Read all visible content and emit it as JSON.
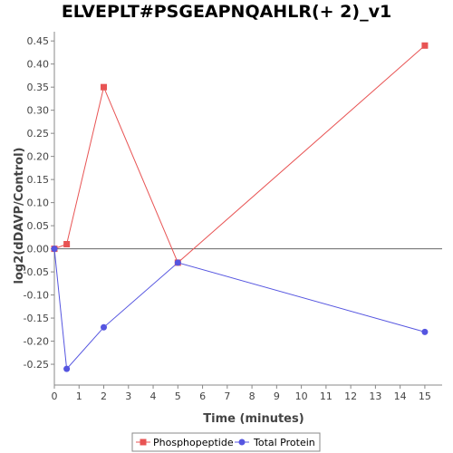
{
  "chart_data": {
    "type": "line",
    "title": "ELVEPLT#PSGEAPNQAHLR(+ 2)_v1",
    "xlabel": "Time (minutes)",
    "ylabel": "log2(dDAVP/Control)",
    "xlim": [
      0,
      15.7
    ],
    "ylim": [
      -0.295,
      0.47
    ],
    "xticks": [
      0,
      1,
      2,
      3,
      4,
      5,
      6,
      7,
      8,
      9,
      10,
      11,
      12,
      13,
      14,
      15
    ],
    "yticks": [
      -0.25,
      -0.2,
      -0.15,
      -0.1,
      -0.05,
      0.0,
      0.05,
      0.1,
      0.15,
      0.2,
      0.25,
      0.3,
      0.35,
      0.4,
      0.45
    ],
    "ytick_labels": [
      "-0.25",
      "-0.20",
      "-0.15",
      "-0.10",
      "-0.05",
      "0.00",
      "0.05",
      "0.10",
      "0.15",
      "0.20",
      "0.25",
      "0.30",
      "0.35",
      "0.40",
      "0.45"
    ],
    "grid": false,
    "zero_line": true,
    "legend": "bottom",
    "series": [
      {
        "name": "Phosphopeptide",
        "color": "#e85454",
        "marker": "square",
        "x": [
          0,
          0.5,
          2,
          5,
          15
        ],
        "y": [
          0.0,
          0.01,
          0.35,
          -0.03,
          0.44
        ]
      },
      {
        "name": "Total Protein",
        "color": "#5555e0",
        "marker": "circle",
        "x": [
          0,
          0.5,
          2,
          5,
          15
        ],
        "y": [
          0.0,
          -0.26,
          -0.17,
          -0.03,
          -0.18
        ]
      }
    ]
  }
}
